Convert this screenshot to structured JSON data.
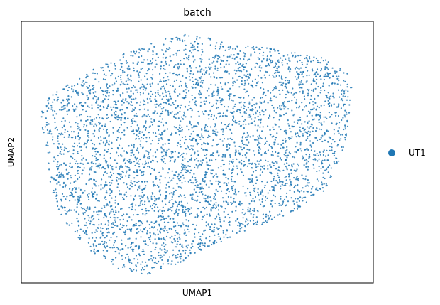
{
  "chart_data": {
    "type": "scatter",
    "title": "batch",
    "xlabel": "UMAP1",
    "ylabel": "UMAP2",
    "grid": false,
    "ticks": false,
    "legend_position": "right",
    "series": [
      {
        "name": "UT1",
        "color": "#1f77b4"
      }
    ],
    "x_range": [
      0,
      1
    ],
    "y_range": [
      0,
      1
    ],
    "cloud_outline": [
      [
        0.05,
        0.62
      ],
      [
        0.07,
        0.55
      ],
      [
        0.08,
        0.4
      ],
      [
        0.1,
        0.29
      ],
      [
        0.14,
        0.2
      ],
      [
        0.2,
        0.12
      ],
      [
        0.28,
        0.05
      ],
      [
        0.36,
        0.03
      ],
      [
        0.44,
        0.07
      ],
      [
        0.54,
        0.14
      ],
      [
        0.64,
        0.2
      ],
      [
        0.72,
        0.24
      ],
      [
        0.8,
        0.29
      ],
      [
        0.86,
        0.35
      ],
      [
        0.9,
        0.45
      ],
      [
        0.93,
        0.58
      ],
      [
        0.95,
        0.7
      ],
      [
        0.93,
        0.8
      ],
      [
        0.86,
        0.86
      ],
      [
        0.78,
        0.88
      ],
      [
        0.7,
        0.9
      ],
      [
        0.6,
        0.91
      ],
      [
        0.52,
        0.94
      ],
      [
        0.46,
        0.95
      ],
      [
        0.4,
        0.93
      ],
      [
        0.34,
        0.9
      ],
      [
        0.26,
        0.86
      ],
      [
        0.18,
        0.8
      ],
      [
        0.12,
        0.75
      ],
      [
        0.07,
        0.7
      ]
    ],
    "approx_point_count": 4200
  }
}
